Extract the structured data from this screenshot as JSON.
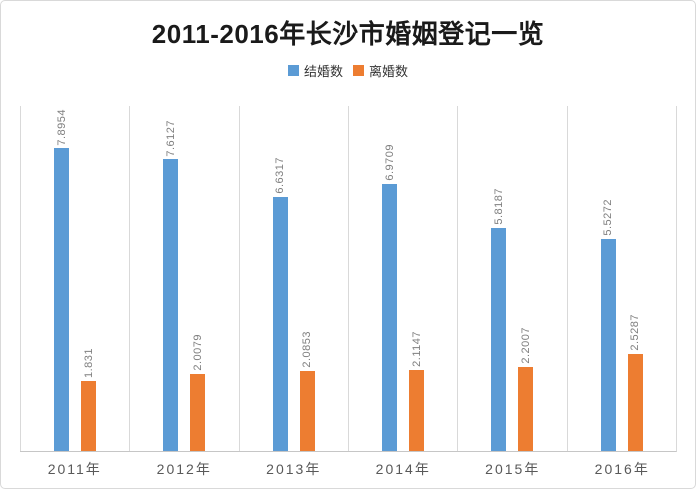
{
  "chart_data": {
    "type": "bar",
    "title": "2011-2016年长沙市婚姻登记一览",
    "categories": [
      "2011年",
      "2012年",
      "2013年",
      "2014年",
      "2015年",
      "2016年"
    ],
    "series": [
      {
        "name": "结婚数",
        "color": "#5B9BD5",
        "values": [
          7.8954,
          7.6127,
          6.6317,
          6.9709,
          5.8187,
          5.5272
        ]
      },
      {
        "name": "离婚数",
        "color": "#ED7D31",
        "values": [
          1.831,
          2.0079,
          2.0853,
          2.1147,
          2.2007,
          2.5287
        ]
      }
    ],
    "data_labels": {
      "结婚数": [
        "7.8954",
        "7.6127",
        "6.6317",
        "6.9709",
        "5.8187",
        "5.5272"
      ],
      "离婚数": [
        "1.831",
        "2.0079",
        "2.0853",
        "2.1147",
        "2.2007",
        "2.5287"
      ]
    },
    "xlabel": "",
    "ylabel": "",
    "ylim": [
      0,
      9
    ],
    "y_axis_visible": false,
    "grid": "vertical-only",
    "legend_position": "top-center"
  },
  "ui": {
    "background_color": "#ffffff",
    "border_color": "#d9d9d9",
    "grid_color": "#d9d9d9",
    "baseline_color": "#c6c6c6",
    "title_color": "#1a1a1a",
    "data_label_color": "#7f7f7f",
    "category_label_color": "#595959",
    "legend_swatch_marriage_color": "#5B9BD5",
    "legend_swatch_divorce_color": "#ED7D31"
  }
}
